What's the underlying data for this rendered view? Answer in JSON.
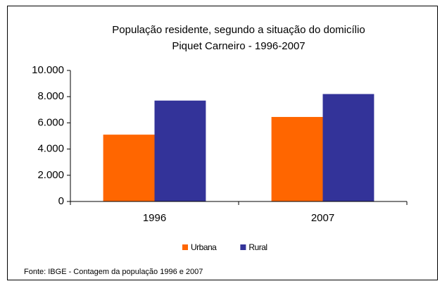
{
  "chart_data": {
    "type": "bar",
    "title": "População residente, segundo a situação do domicílio",
    "subtitle": "Piquet Carneiro  - 1996-2007",
    "categories": [
      "1996",
      "2007"
    ],
    "series": [
      {
        "name": "Urbana",
        "color": "#ff6600",
        "values": [
          5100,
          6450
        ]
      },
      {
        "name": "Rural",
        "color": "#333399",
        "values": [
          7700,
          8200
        ]
      }
    ],
    "ylim": [
      0,
      10000
    ],
    "yticks": [
      0,
      {
        "value": 2000,
        "label": "2.000"
      },
      {
        "value": 4000,
        "label": "4.000"
      },
      {
        "value": 6000,
        "label": "6.000"
      },
      {
        "value": 8000,
        "label": "8.000"
      },
      {
        "value": 10000,
        "label": "10.000"
      }
    ],
    "grid": false,
    "legend": "bottom",
    "note": "Fonte: IBGE - Contagem da população 1996 e 2007"
  }
}
